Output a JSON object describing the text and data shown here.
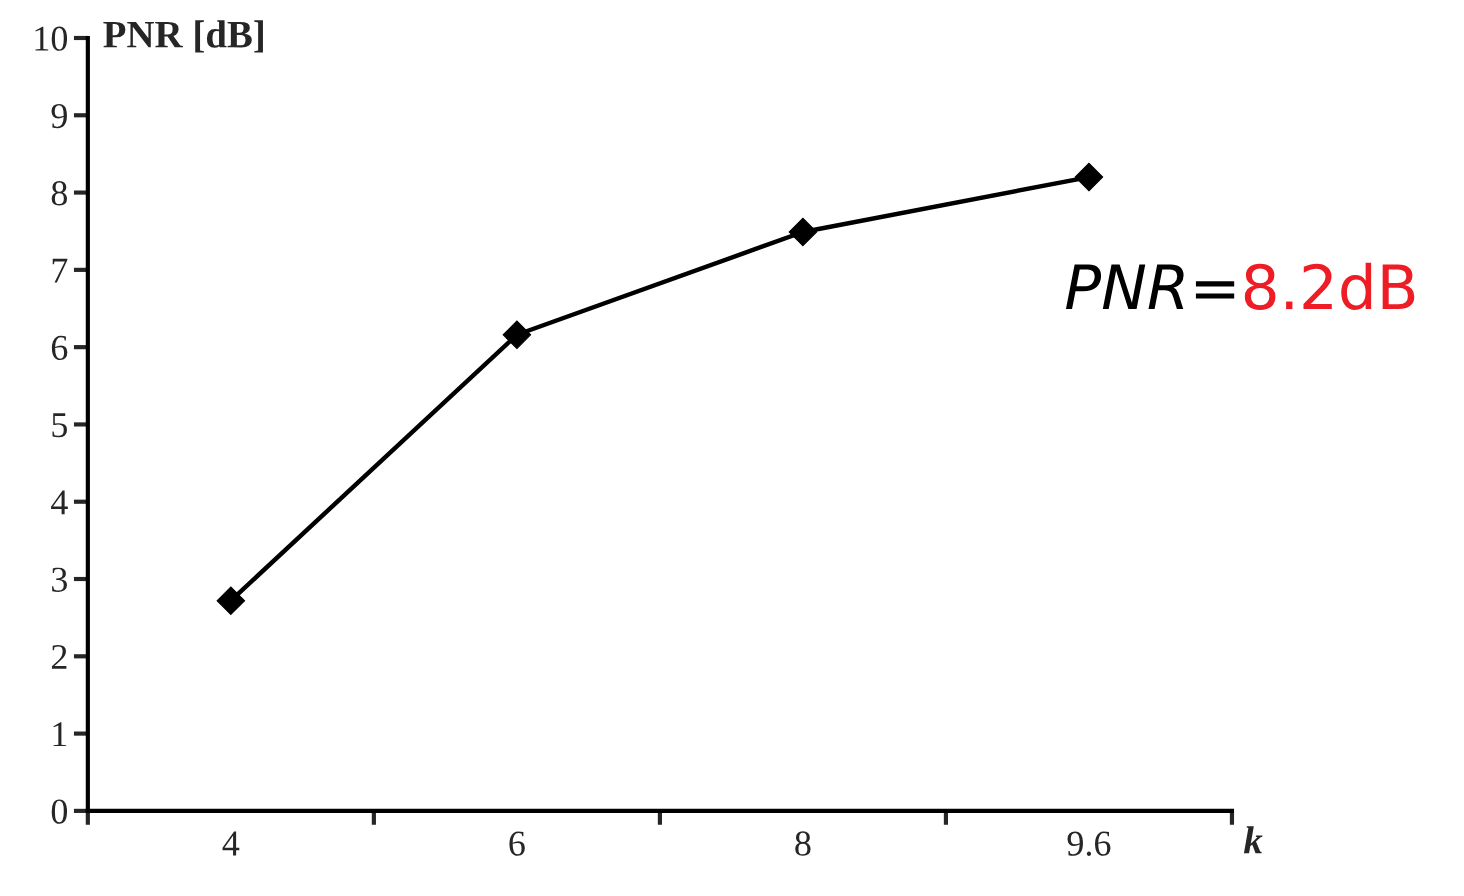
{
  "chart_data": {
    "type": "line",
    "categories": [
      "4",
      "6",
      "8",
      "9.6"
    ],
    "values": [
      2.72,
      6.16,
      7.49,
      8.2
    ],
    "color": "#000000",
    "marker": "diamond",
    "line_style": "solid",
    "ylim": [
      0,
      10
    ],
    "yticks": [
      0,
      1,
      2,
      3,
      4,
      5,
      6,
      7,
      8,
      9,
      10
    ],
    "xlabel": "k",
    "ylabel": "PNR [dB]",
    "annotations": [
      "PNR",
      "=",
      "8.2dB"
    ],
    "grid": false,
    "legend": false
  }
}
